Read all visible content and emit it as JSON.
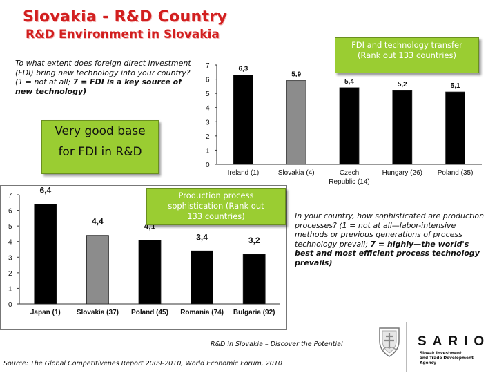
{
  "header": {
    "title": "Slovakia - R&D Country",
    "subtitle": "R&D Environment in Slovakia"
  },
  "fdi_box": {
    "line1": "FDI and technology transfer",
    "line2": "(Rank out 133 countries)"
  },
  "very_good_box": {
    "line1": "Very good base",
    "line2": "for FDI in R&D"
  },
  "production_box": {
    "line1": "Production process",
    "line2": "sophistication (Rank out",
    "line3": "133 countries)"
  },
  "question1": {
    "text": "To what extent does foreign direct investment (FDI) bring new technology into your country? (1 = not at all; ",
    "bold": "7 = FDI is a key source of new technology)"
  },
  "question2": {
    "text": "In your country, how sophisticated are production processes? (1 = not at all—labor-intensive methods or previous generations of process technology prevail; ",
    "bold": "7 = highly—the world's best and most efficient process technology prevails)"
  },
  "footer": {
    "tagline": "R&D in Slovakia – Discover the Potential",
    "source": "Source: The Global Competitivenes Report 2009-2010, World Economic Forum, 2010",
    "logo": "SARIO",
    "agency_line1": "Slovak Investment",
    "agency_line2": "and Trade Development Agency"
  },
  "chart_data": [
    {
      "type": "bar",
      "title": "FDI and technology transfer (Rank out 133 countries)",
      "categories": [
        "Ireland (1)",
        "Slovakia (4)",
        "Czech Republic (14)",
        "Hungary (26)",
        "Poland (35)"
      ],
      "category_lines": [
        [
          "Ireland (1)"
        ],
        [
          "Slovakia (4)"
        ],
        [
          "Czech",
          "Republic (14)"
        ],
        [
          "Hungary (26)"
        ],
        [
          "Poland (35)"
        ]
      ],
      "values": [
        6.3,
        5.9,
        5.4,
        5.2,
        5.1
      ],
      "labels": [
        "6,3",
        "5,9",
        "5,4",
        "5,2",
        "5,1"
      ],
      "ylim": [
        0,
        7
      ],
      "yticks": [
        "0",
        "1",
        "2",
        "3",
        "4",
        "5",
        "6",
        "7"
      ],
      "highlight_index": 1,
      "bar_color": "#000000",
      "highlight_color": "#8c8c8c"
    },
    {
      "type": "bar",
      "title": "Production process sophistication (Rank out 133 countries)",
      "categories": [
        "Japan (1)",
        "Slovakia (37)",
        "Poland (45)",
        "Romania (74)",
        "Bulgaria (92)"
      ],
      "category_lines": [
        [
          "Japan (1)"
        ],
        [
          "Slovakia (37)"
        ],
        [
          "Poland (45)"
        ],
        [
          "Romania (74)"
        ],
        [
          "Bulgaria (92)"
        ]
      ],
      "values": [
        6.4,
        4.4,
        4.1,
        3.4,
        3.2
      ],
      "labels": [
        "6,4",
        "4,4",
        "4,1",
        "3,4",
        "3,2"
      ],
      "ylim": [
        0,
        7
      ],
      "yticks": [
        "0",
        "1",
        "2",
        "3",
        "4",
        "5",
        "6",
        "7"
      ],
      "highlight_index": 1,
      "bar_color": "#000000",
      "highlight_color": "#8c8c8c"
    }
  ]
}
